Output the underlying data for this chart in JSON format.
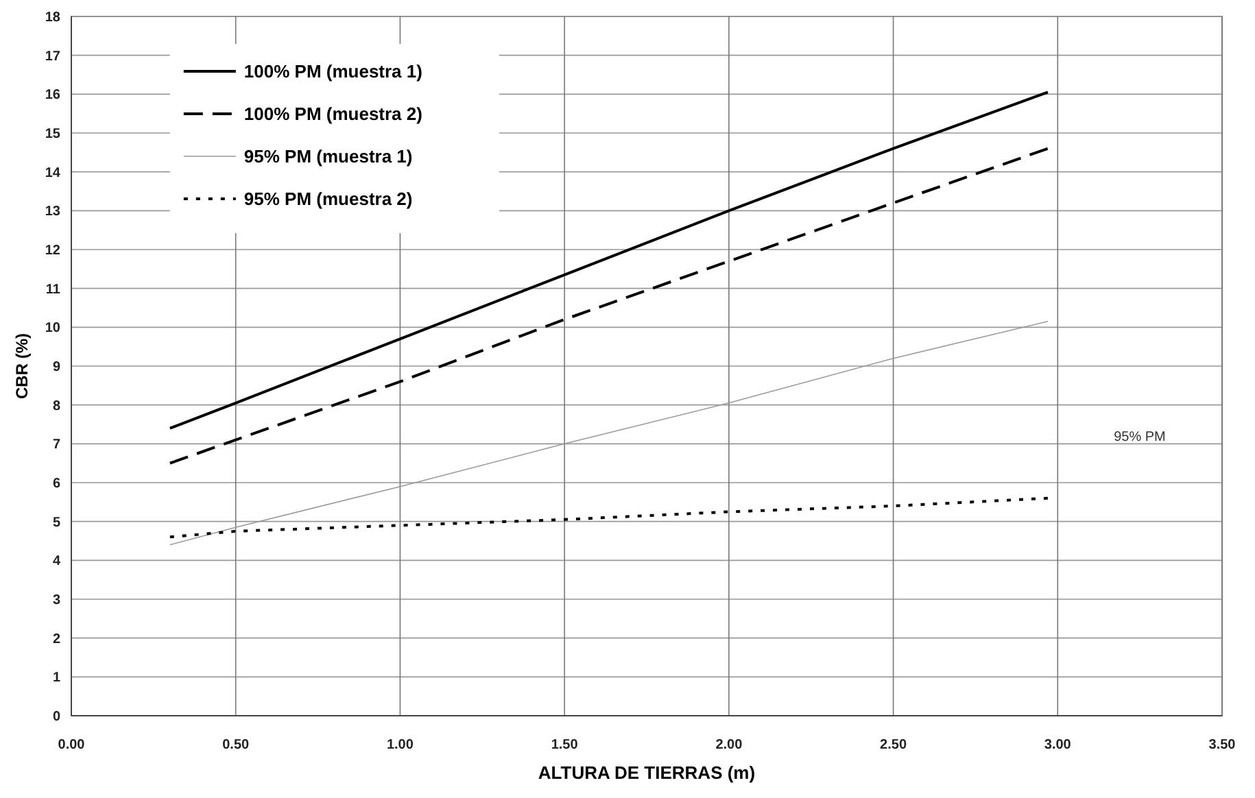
{
  "chart_data": {
    "type": "line",
    "xlabel": "ALTURA DE TIERRAS (m)",
    "ylabel": "CBR (%)",
    "x": [
      0.3,
      0.5,
      1,
      1.5,
      2,
      2.5,
      2.97
    ],
    "series": [
      {
        "name": "100% PM (muestra 1)",
        "color": "#000000",
        "line_style": "solid",
        "values": [
          7.4,
          8.05,
          9.7,
          11.35,
          13.0,
          14.6,
          16.05
        ]
      },
      {
        "name": "100% PM (muestra 2)",
        "color": "#000000",
        "line_style": "dashed",
        "values": [
          6.5,
          7.1,
          8.6,
          10.2,
          11.7,
          13.2,
          14.6
        ]
      },
      {
        "name": "95% PM (muestra 1)",
        "color": "#999999",
        "line_style": "solid",
        "values": [
          4.4,
          4.85,
          5.9,
          7.0,
          8.05,
          9.2,
          10.15
        ]
      },
      {
        "name": "95% PM (muestra 2)",
        "color": "#000000",
        "line_style": "dotted",
        "values": [
          4.6,
          4.75,
          4.9,
          5.05,
          5.25,
          5.4,
          5.6
        ]
      }
    ],
    "xlim": [
      0,
      3.5
    ],
    "xticks": [
      {
        "value": 0,
        "label": "0.00"
      },
      {
        "value": 0.5,
        "label": "0.50"
      },
      {
        "value": 1,
        "label": "1.00"
      },
      {
        "value": 1.5,
        "label": "1.50"
      },
      {
        "value": 2,
        "label": "2.00"
      },
      {
        "value": 2.5,
        "label": "2.50"
      },
      {
        "value": 3,
        "label": "3.00"
      },
      {
        "value": 3.5,
        "label": "3.50"
      }
    ],
    "ylim": [
      0,
      18
    ],
    "yticks": [
      0,
      1,
      2,
      3,
      4,
      5,
      6,
      7,
      8,
      9,
      10,
      11,
      12,
      13,
      14,
      15,
      16,
      17,
      18
    ],
    "grid": true,
    "legend": "top left",
    "marker": "none",
    "annotations": [
      "95% PM"
    ]
  }
}
